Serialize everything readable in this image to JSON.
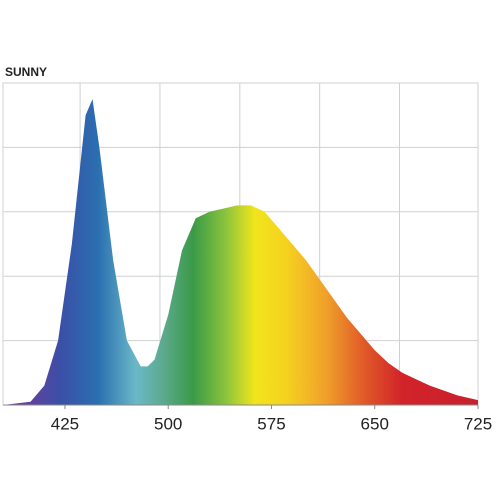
{
  "chart_data": {
    "type": "area",
    "title": "SUNNY",
    "x": [
      380,
      400,
      410,
      420,
      430,
      440,
      445,
      450,
      460,
      470,
      480,
      485,
      490,
      500,
      510,
      520,
      530,
      540,
      550,
      560,
      570,
      580,
      590,
      600,
      610,
      620,
      630,
      640,
      650,
      660,
      670,
      680,
      690,
      700,
      710,
      725
    ],
    "values": [
      0,
      0.01,
      0.06,
      0.2,
      0.5,
      0.9,
      0.95,
      0.8,
      0.45,
      0.2,
      0.12,
      0.12,
      0.14,
      0.28,
      0.48,
      0.58,
      0.6,
      0.61,
      0.62,
      0.62,
      0.6,
      0.55,
      0.5,
      0.45,
      0.39,
      0.33,
      0.27,
      0.22,
      0.17,
      0.13,
      0.1,
      0.08,
      0.06,
      0.045,
      0.03,
      0.015
    ],
    "xlim": [
      380,
      725
    ],
    "xticks": [
      425,
      500,
      575,
      650,
      725
    ],
    "ylim": [
      0,
      1
    ],
    "xgrid": [
      436,
      494,
      552,
      610,
      668
    ],
    "ygrid": [
      0.2,
      0.4,
      0.6,
      0.8
    ],
    "grid": true
  }
}
